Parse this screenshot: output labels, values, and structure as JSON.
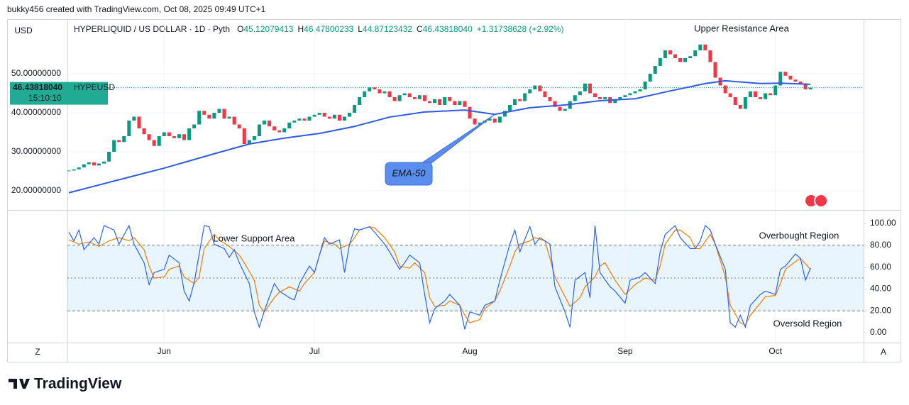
{
  "header": {
    "byline": "bukky456 created with TradingView.com, Oct 08, 2025 09:49 UTC+1"
  },
  "footer": {
    "logo": "TradingView"
  },
  "buttons": {
    "left": "Z",
    "right": "A"
  },
  "chart_data": [
    {
      "type": "candlestick",
      "title": "HYPERLIQUID / US DOLLAR · 1D · Pyth",
      "currency": "USD",
      "ohlc": [
        {
          "key": "O",
          "value": "45.12079413"
        },
        {
          "key": "H",
          "value": "46.47800233"
        },
        {
          "key": "L",
          "value": "44.87123432"
        },
        {
          "key": "C",
          "value": "46.43818040"
        }
      ],
      "change": "+1.31738628 (+2.92%)",
      "last_price": {
        "value": 46.4381804,
        "label": "46.43818040",
        "countdown": "15:10:10"
      },
      "annotations": [
        "Upper Resistance Area"
      ],
      "ylim": [
        15.09,
        64
      ],
      "yticks": [
        {
          "value": 20,
          "label": "20.00000000"
        },
        {
          "value": 30,
          "label": "30.00000000"
        },
        {
          "value": 40,
          "label": "40.00000000"
        },
        {
          "value": 50,
          "label": "50.00000000"
        }
      ],
      "grid": true,
      "xlim": [
        -0.3,
        158.6
      ],
      "series": [
        {
          "name": "HYPEUSD",
          "color": "#089981",
          "down_color": "#f23645",
          "values": [
            25.2,
            25.5,
            26.0,
            26.8,
            27.3,
            26.5,
            27.0,
            27.5,
            30.0,
            33.0,
            32.5,
            34.0,
            38.0,
            39.0,
            36.0,
            34.5,
            33.0,
            31.5,
            34.0,
            35.0,
            34.0,
            33.5,
            34.5,
            33.0,
            36.0,
            37.0,
            40.5,
            39.5,
            38.5,
            40.0,
            41.0,
            38.5,
            39.0,
            37.0,
            36.0,
            32.0,
            33.0,
            34.0,
            37.0,
            38.0,
            36.5,
            35.5,
            35.0,
            36.0,
            37.5,
            38.0,
            38.5,
            38.0,
            39.0,
            39.5,
            40.0,
            39.0,
            38.5,
            39.5,
            38.0,
            39.0,
            40.0,
            42.0,
            44.0,
            45.5,
            46.5,
            46.0,
            45.0,
            45.5,
            44.0,
            43.0,
            44.5,
            45.0,
            44.0,
            43.5,
            44.5,
            43.0,
            42.5,
            43.5,
            42.0,
            44.0,
            43.0,
            42.0,
            43.0,
            41.5,
            38.5,
            37.0,
            37.5,
            38.0,
            38.5,
            37.5,
            39.0,
            40.5,
            42.0,
            43.5,
            43.0,
            45.0,
            46.0,
            47.0,
            45.5,
            44.0,
            43.0,
            41.5,
            40.5,
            41.0,
            43.0,
            44.5,
            45.5,
            47.5,
            45.0,
            44.0,
            43.5,
            44.0,
            42.5,
            43.5,
            44.0,
            44.5,
            45.0,
            45.5,
            46.0,
            48.0,
            50.0,
            52.0,
            54.0,
            56.0,
            55.0,
            54.0,
            53.0,
            54.0,
            54.5,
            56.0,
            57.5,
            56.0,
            53.0,
            49.0,
            47.0,
            45.0,
            44.0,
            42.0,
            41.0,
            44.0,
            45.5,
            44.0,
            43.5,
            45.0,
            44.5,
            47.0,
            50.5,
            49.5,
            48.5,
            48.0,
            47.5,
            46.0,
            46.4381804
          ]
        }
      ],
      "ema": {
        "name": "EMA-50",
        "color": "#2f5be0",
        "x": [
          0,
          12,
          19,
          29,
          36,
          43,
          50,
          57,
          64,
          71,
          79,
          85,
          92,
          99,
          106,
          113,
          120,
          127,
          131,
          138,
          142,
          148
        ],
        "values": [
          19.5,
          23.5,
          25.8,
          29.5,
          32,
          33.5,
          34.7,
          36.5,
          38.9,
          40.2,
          40.7,
          39.6,
          41.3,
          42,
          43.1,
          43.6,
          45.6,
          47.5,
          48.2,
          47.5,
          47.6,
          47.3
        ]
      }
    },
    {
      "type": "line",
      "annotations": [
        "Lower Support Area",
        "Overbought Region",
        "Oversold Region"
      ],
      "ylim": [
        -9.1,
        111.7
      ],
      "yticks": [
        {
          "value": 0,
          "label": "0.00"
        },
        {
          "value": 20,
          "label": "20.00"
        },
        {
          "value": 40,
          "label": "40.00"
        },
        {
          "value": 60,
          "label": "60.00"
        },
        {
          "value": 80,
          "label": "80.00"
        },
        {
          "value": 100,
          "label": "100.00"
        }
      ],
      "bands": {
        "upper": 80,
        "middle": 50,
        "lower": 20,
        "color": "#2196f3"
      },
      "xlim": [
        -0.3,
        158.6
      ],
      "xticks": [
        {
          "value": 19,
          "label": "Jun"
        },
        {
          "value": 49,
          "label": "Jul"
        },
        {
          "value": 80,
          "label": "Aug"
        },
        {
          "value": 111,
          "label": "Sep"
        },
        {
          "value": 141,
          "label": "Oct"
        }
      ],
      "series": [
        {
          "color": "#2962ff",
          "x": [
            0,
            1,
            2,
            3,
            5,
            6,
            7,
            9,
            10,
            12,
            13,
            15,
            16,
            17,
            19,
            20,
            22,
            23,
            24,
            25,
            27,
            28,
            29,
            31,
            32,
            33,
            34,
            36,
            37,
            38,
            39,
            41,
            42,
            44,
            45,
            46,
            48,
            49,
            51,
            52,
            54,
            55,
            56,
            57,
            58,
            60,
            61,
            63,
            64,
            66,
            67,
            68,
            70,
            71,
            72,
            73,
            75,
            76,
            78,
            79,
            80,
            82,
            83,
            85,
            86,
            88,
            89,
            90,
            92,
            93,
            94,
            96,
            97,
            99,
            100,
            101,
            103,
            104,
            105,
            106,
            108,
            109,
            111,
            112,
            114,
            115,
            117,
            118,
            119,
            121,
            122,
            124,
            125,
            126,
            127,
            128,
            129,
            131,
            132,
            133,
            134,
            135,
            136,
            138,
            139,
            141,
            142,
            143,
            145,
            146,
            147,
            148
          ],
          "values": [
            92,
            84,
            94,
            76,
            87,
            81,
            98,
            94,
            81,
            98,
            81,
            64,
            44,
            55,
            58,
            71,
            64,
            38,
            29,
            46,
            98,
            97,
            81,
            77,
            69,
            76,
            64,
            45,
            19,
            5,
            20,
            45,
            38,
            32,
            30,
            45,
            61,
            55,
            87,
            81,
            85,
            55,
            81,
            95,
            94,
            97,
            92,
            81,
            74,
            58,
            64,
            71,
            64,
            35,
            9,
            22,
            29,
            35,
            25,
            3,
            19,
            16,
            25,
            29,
            48,
            81,
            94,
            74,
            97,
            81,
            87,
            81,
            42,
            19,
            5,
            48,
            55,
            32,
            98,
            55,
            42,
            38,
            27,
            48,
            51,
            55,
            45,
            74,
            90,
            98,
            87,
            77,
            77,
            84,
            98,
            94,
            81,
            58,
            9,
            5,
            16,
            5,
            25,
            35,
            38,
            35,
            58,
            61,
            72,
            68,
            48,
            59
          ]
        },
        {
          "color": "#f57c00",
          "x": [
            0,
            2,
            4,
            6,
            8,
            10,
            12,
            13,
            15,
            16,
            17,
            19,
            20,
            22,
            23,
            25,
            26,
            27,
            29,
            30,
            32,
            34,
            35,
            37,
            38,
            39,
            41,
            42,
            44,
            46,
            47,
            49,
            50,
            51,
            53,
            54,
            56,
            57,
            58,
            60,
            61,
            63,
            65,
            66,
            68,
            69,
            71,
            72,
            73,
            75,
            76,
            78,
            79,
            80,
            82,
            83,
            85,
            86,
            88,
            89,
            90,
            92,
            93,
            95,
            96,
            97,
            99,
            100,
            102,
            103,
            105,
            106,
            107,
            109,
            111,
            113,
            115,
            117,
            118,
            119,
            121,
            122,
            124,
            125,
            126,
            128,
            129,
            131,
            132,
            134,
            135,
            136,
            138,
            139,
            141,
            142,
            143,
            145,
            146,
            148
          ],
          "values": [
            85,
            81,
            83,
            79,
            84,
            87,
            84,
            87,
            76,
            61,
            50,
            51,
            58,
            61,
            51,
            45,
            51,
            77,
            90,
            85,
            79,
            71,
            64,
            48,
            25,
            19,
            32,
            37,
            42,
            38,
            45,
            55,
            71,
            84,
            81,
            77,
            81,
            87,
            94,
            97,
            96,
            87,
            74,
            61,
            59,
            64,
            55,
            32,
            24,
            25,
            29,
            25,
            16,
            9,
            12,
            22,
            29,
            38,
            61,
            74,
            81,
            84,
            87,
            84,
            68,
            51,
            33,
            24,
            32,
            42,
            51,
            61,
            64,
            48,
            35,
            44,
            50,
            48,
            61,
            81,
            94,
            94,
            87,
            77,
            77,
            90,
            81,
            51,
            25,
            9,
            7,
            16,
            27,
            33,
            34,
            45,
            58,
            65,
            68,
            58
          ]
        }
      ]
    }
  ]
}
